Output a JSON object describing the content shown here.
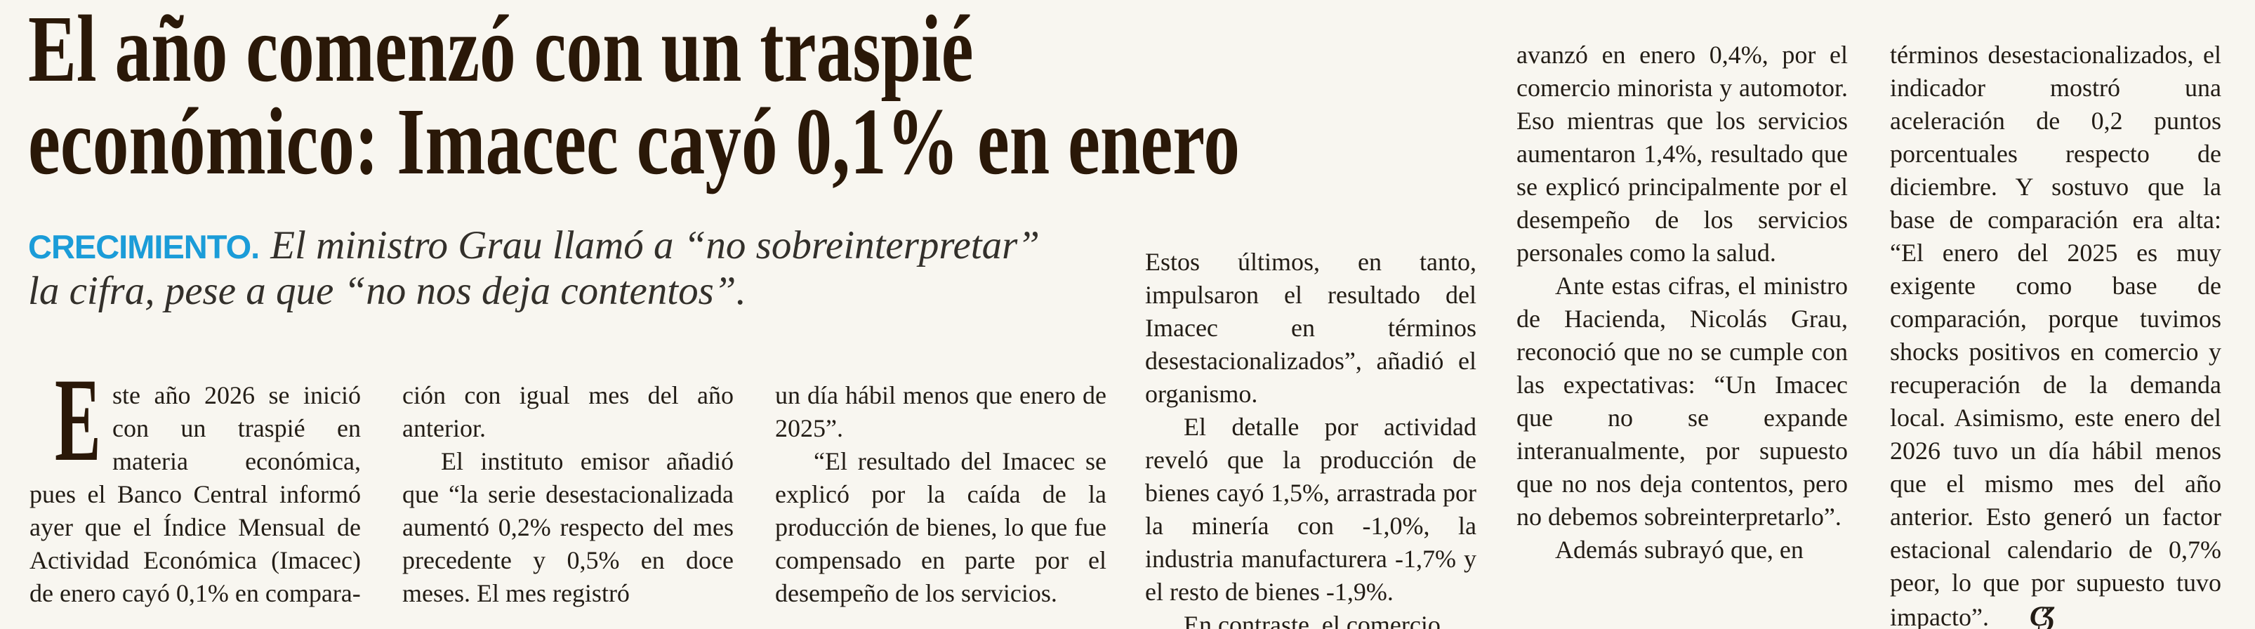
{
  "colors": {
    "paper": "#f8f6f0",
    "headline": "#2a1808",
    "body_text": "#221c15",
    "kicker_blue": "#1b9cd8",
    "deck_gray": "#33302b"
  },
  "article": {
    "headline": {
      "line1": "El año comenzó con un traspié",
      "line2": "económico: Imacec cayó 0,1% en enero"
    },
    "kicker": "CRECIMIENTO.",
    "deck": {
      "line1": "El ministro Grau llamó a “no sobreinterpretar”",
      "line2": "la cifra, pese a que “no nos deja contentos”."
    },
    "end_mark": "CƷ",
    "columns": [
      {
        "blocks": [
          {
            "drop_cap": "E",
            "indent": false,
            "text": "ste año 2026 se inició con un traspié en materia económica, pues el Banco Central informó ayer que el Índice Mensual de Actividad Económica (Imacec) de enero cayó 0,1% en compara-"
          }
        ]
      },
      {
        "blocks": [
          {
            "indent": false,
            "text": "ción con igual mes del año anterior."
          },
          {
            "indent": true,
            "text": "El instituto emisor añadió que “la serie desestacionalizada aumentó 0,2% respecto del mes precedente y 0,5% en doce meses. El mes registró"
          }
        ]
      },
      {
        "blocks": [
          {
            "indent": false,
            "text": "un día hábil menos que enero de 2025”."
          },
          {
            "indent": true,
            "text": "“El resultado del Imacec se explicó por la caída de la producción de bienes, lo que fue compensado en parte por el desempeño de los servicios."
          }
        ]
      },
      {
        "blocks": [
          {
            "indent": false,
            "text": "Estos últimos, en tanto, impulsaron el resultado del Imacec en términos desestacionalizados”, añadió el organismo."
          },
          {
            "indent": true,
            "text": "El detalle por actividad reveló que la producción de bienes cayó 1,5%, arrastrada por la minería con -1,0%, la industria manufacturera -1,7% y el resto de bienes -1,9%."
          },
          {
            "indent": true,
            "text": "En contraste, el comercio"
          }
        ]
      },
      {
        "blocks": [
          {
            "indent": false,
            "text": "avanzó en enero 0,4%, por el comercio minorista y automotor. Eso mientras que los servicios aumentaron 1,4%, resultado que se explicó principalmente por el desempeño de los servicios personales como la salud."
          },
          {
            "indent": true,
            "text": "Ante estas cifras, el ministro de Hacienda, Nicolás Grau, reconoció que no se cumple con las expectativas: “Un Imacec que no se expande interanualmente, por supuesto que no nos deja contentos, pero no debemos sobreinterpretarlo”."
          },
          {
            "indent": true,
            "text": "Además subrayó que, en"
          }
        ]
      },
      {
        "blocks": [
          {
            "indent": false,
            "end_mark": true,
            "text": "términos desestacionalizados, el indicador mostró una aceleración de 0,2 puntos porcentuales respecto de diciembre. Y sostuvo que la base de comparación era alta: “El enero del 2025 es muy exigente como base de comparación, porque tuvimos shocks positivos en comercio y recuperación de la demanda local. Asimismo, este enero del 2026 tuvo un día hábil menos que el mismo mes del año anterior. Esto generó un factor estacional calendario de 0,7% peor, lo que por supuesto tuvo impacto”."
          }
        ]
      }
    ]
  }
}
